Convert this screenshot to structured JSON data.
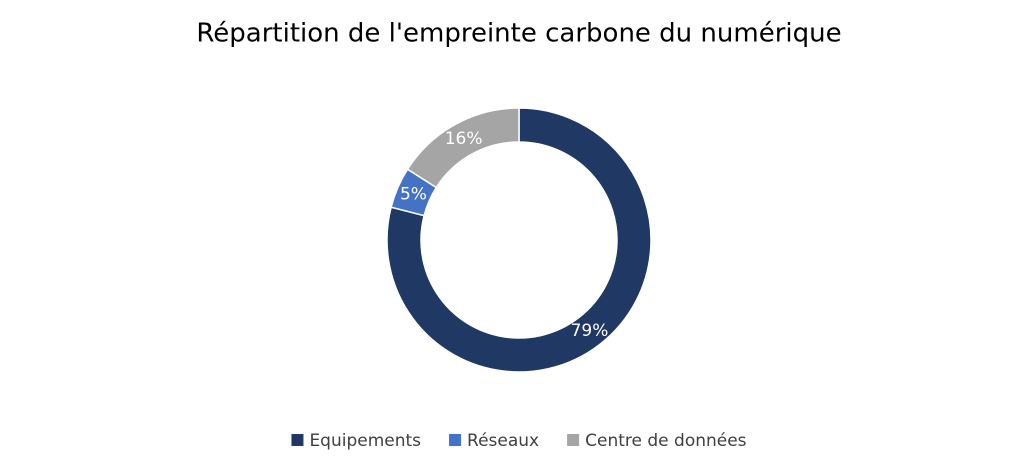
{
  "chart_data": {
    "type": "donut",
    "title": "Répartition de l'empreinte carbone du numérique",
    "categories": [
      "Equipements",
      "Réseaux",
      "Centre de données"
    ],
    "values": [
      79,
      5,
      16
    ],
    "value_labels": [
      "79%",
      "5%",
      "16%"
    ],
    "colors": [
      "#203864",
      "#4472c4",
      "#a5a5a5"
    ],
    "legend": "bottom"
  }
}
